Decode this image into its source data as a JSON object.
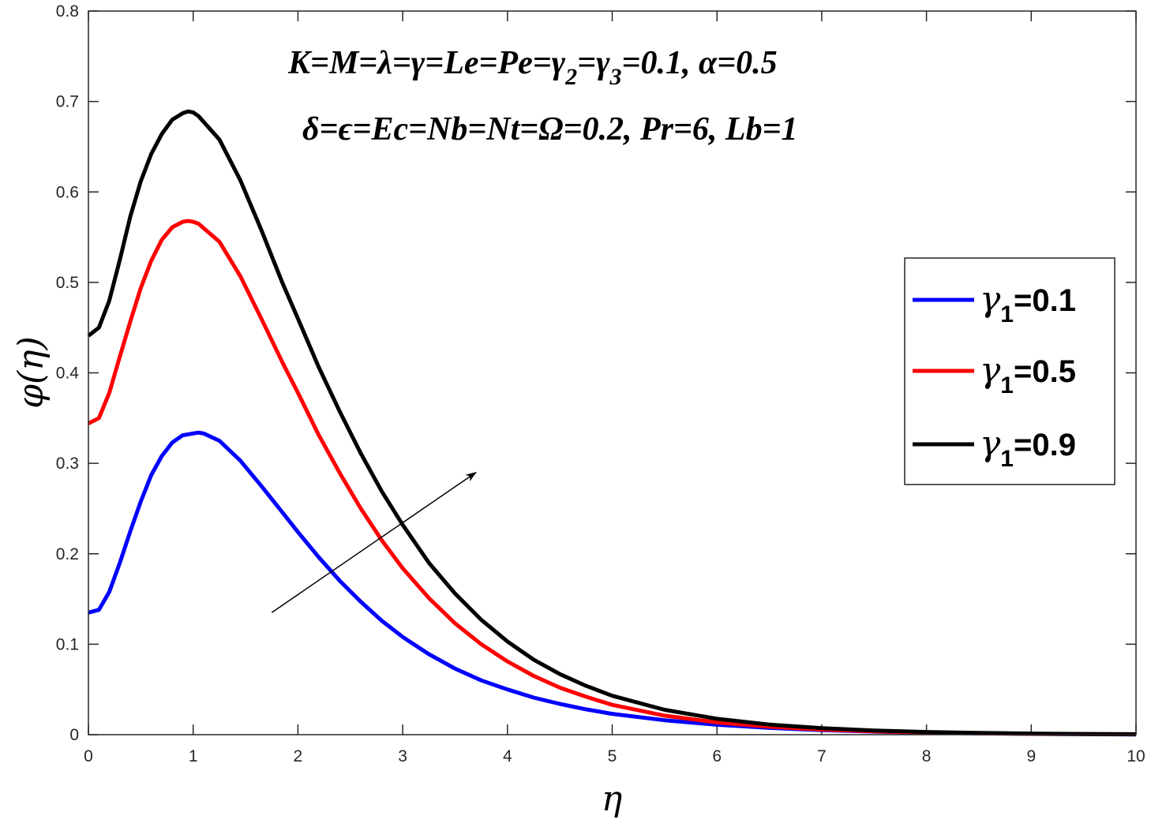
{
  "chart_data": {
    "type": "line",
    "xlabel": "η",
    "ylabel": "φ(η)",
    "xlim": [
      0,
      10
    ],
    "ylim": [
      0,
      0.8
    ],
    "xticks": [
      0,
      1,
      2,
      3,
      4,
      5,
      6,
      7,
      8,
      9,
      10
    ],
    "yticks": [
      0,
      0.1,
      0.2,
      0.3,
      0.4,
      0.5,
      0.6,
      0.7,
      0.8
    ],
    "xtick_labels": [
      "0",
      "1",
      "2",
      "3",
      "4",
      "5",
      "6",
      "7",
      "8",
      "9",
      "10"
    ],
    "ytick_labels": [
      "0",
      "0.1",
      "0.2",
      "0.3",
      "0.4",
      "0.5",
      "0.6",
      "0.7",
      "0.8"
    ],
    "grid": false,
    "legend_position": "right",
    "annotations": {
      "line1_part1": "K=M=λ=γ=Le=Pe=γ",
      "line1_sub1": "2",
      "line1_part2": "=γ",
      "line1_sub2": "3",
      "line1_part3": "=0.1, α=0.5",
      "line2": "δ=ϵ=Ec=Nb=Nt=Ω=0.2, Pr=6, Lb=1"
    },
    "arrow": {
      "from": [
        1.75,
        0.135
      ],
      "to": [
        3.7,
        0.29
      ],
      "meaning": "increasing γ1"
    },
    "series": [
      {
        "name": "γ1=0.1",
        "legend_symbol": "γ",
        "legend_sub": "1",
        "legend_value": "=0.1",
        "color": "#0000ff",
        "x": [
          0,
          0.1,
          0.2,
          0.3,
          0.4,
          0.5,
          0.6,
          0.7,
          0.8,
          0.9,
          1.0,
          1.05,
          1.1,
          1.25,
          1.45,
          1.65,
          1.85,
          2.0,
          2.2,
          2.4,
          2.6,
          2.8,
          3.0,
          3.25,
          3.5,
          3.75,
          4.0,
          4.25,
          4.5,
          4.75,
          5.0,
          5.5,
          6.0,
          6.5,
          7.0,
          7.5,
          8.0,
          8.5,
          9.0,
          9.5,
          10.0
        ],
        "values": [
          0.135,
          0.138,
          0.158,
          0.19,
          0.225,
          0.258,
          0.287,
          0.308,
          0.323,
          0.331,
          0.333,
          0.334,
          0.333,
          0.325,
          0.303,
          0.275,
          0.246,
          0.224,
          0.196,
          0.17,
          0.147,
          0.126,
          0.108,
          0.089,
          0.073,
          0.06,
          0.05,
          0.041,
          0.034,
          0.028,
          0.023,
          0.016,
          0.011,
          0.0075,
          0.005,
          0.0034,
          0.0022,
          0.0014,
          0.0009,
          0.0005,
          0.0003
        ]
      },
      {
        "name": "γ1=0.5",
        "legend_symbol": "γ",
        "legend_sub": "1",
        "legend_value": "=0.5",
        "color": "#ff0000",
        "x": [
          0,
          0.1,
          0.2,
          0.3,
          0.4,
          0.5,
          0.6,
          0.7,
          0.8,
          0.9,
          0.95,
          1.0,
          1.05,
          1.25,
          1.45,
          1.65,
          1.85,
          2.0,
          2.2,
          2.4,
          2.6,
          2.8,
          3.0,
          3.25,
          3.5,
          3.75,
          4.0,
          4.25,
          4.5,
          4.75,
          5.0,
          5.5,
          6.0,
          6.5,
          7.0,
          7.5,
          8.0,
          8.5,
          9.0,
          9.5,
          10.0
        ],
        "values": [
          0.344,
          0.35,
          0.378,
          0.418,
          0.457,
          0.494,
          0.524,
          0.547,
          0.561,
          0.567,
          0.568,
          0.567,
          0.565,
          0.545,
          0.507,
          0.46,
          0.412,
          0.378,
          0.331,
          0.289,
          0.25,
          0.215,
          0.184,
          0.151,
          0.123,
          0.1,
          0.081,
          0.065,
          0.052,
          0.042,
          0.033,
          0.021,
          0.0135,
          0.0088,
          0.0057,
          0.0037,
          0.0024,
          0.0016,
          0.001,
          0.0006,
          0.0004
        ]
      },
      {
        "name": "γ1=0.9",
        "legend_symbol": "γ",
        "legend_sub": "1",
        "legend_value": "=0.9",
        "color": "#000000",
        "x": [
          0,
          0.1,
          0.2,
          0.3,
          0.4,
          0.5,
          0.6,
          0.7,
          0.8,
          0.9,
          0.95,
          1.0,
          1.05,
          1.25,
          1.45,
          1.65,
          1.85,
          2.0,
          2.2,
          2.4,
          2.6,
          2.8,
          3.0,
          3.25,
          3.5,
          3.75,
          4.0,
          4.25,
          4.5,
          4.75,
          5.0,
          5.5,
          6.0,
          6.5,
          7.0,
          7.5,
          8.0,
          8.5,
          9.0,
          9.5,
          10.0
        ],
        "values": [
          0.441,
          0.45,
          0.48,
          0.525,
          0.573,
          0.612,
          0.642,
          0.664,
          0.68,
          0.687,
          0.689,
          0.688,
          0.684,
          0.658,
          0.613,
          0.558,
          0.5,
          0.46,
          0.406,
          0.357,
          0.311,
          0.269,
          0.232,
          0.19,
          0.156,
          0.127,
          0.103,
          0.083,
          0.067,
          0.054,
          0.043,
          0.0275,
          0.0175,
          0.0112,
          0.0072,
          0.0046,
          0.003,
          0.0019,
          0.0012,
          0.0008,
          0.0005
        ]
      }
    ]
  }
}
